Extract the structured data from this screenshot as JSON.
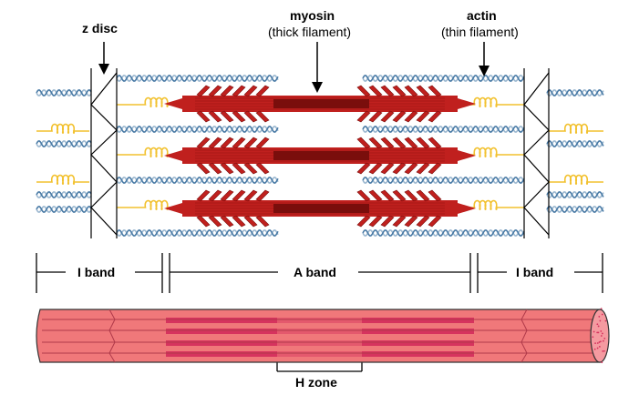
{
  "labels": {
    "z_disc": "z disc",
    "myosin": "myosin",
    "myosin_sub": "(thick filament)",
    "actin": "actin",
    "actin_sub": "(thin filament)",
    "i_band_left": "I band",
    "a_band": "A band",
    "i_band_right": "I band",
    "h_zone": "H zone"
  },
  "colors": {
    "myosin": "#c0201e",
    "myosin_dark": "#7a0e0c",
    "actin_a": "#4a7ba6",
    "actin_b": "#9cb8d0",
    "titin": "#f2c12e",
    "fiber": "#f0787a",
    "fiber_band": "#d6335e",
    "line": "#000000"
  }
}
